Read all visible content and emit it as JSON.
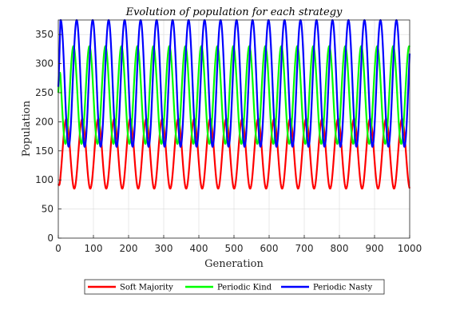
{
  "chart_data": {
    "type": "line",
    "title": "Evolution of population for each strategy",
    "xlabel": "Generation",
    "ylabel": "Population",
    "xlim": [
      0,
      1000
    ],
    "ylim": [
      0,
      375
    ],
    "xticks": [
      "0",
      "100",
      "200",
      "300",
      "400",
      "500",
      "600",
      "700",
      "800",
      "900",
      "1000"
    ],
    "yticks": [
      "0",
      "50",
      "100",
      "150",
      "200",
      "250",
      "300",
      "350"
    ],
    "grid": true,
    "legend_position": "bottom-outside",
    "period": 45.5,
    "series": [
      {
        "name": "Soft Majority",
        "color": "#ff0000",
        "min": 85,
        "max": 205,
        "phase": 0.0,
        "start": 93
      },
      {
        "name": "Periodic Kind",
        "color": "#00ff00",
        "min": 162,
        "max": 330,
        "phase": 0.55,
        "start": 250
      },
      {
        "name": "Periodic Nasty",
        "color": "#0000ff",
        "min": 157,
        "max": 375,
        "phase": 0.35,
        "start": 260
      }
    ]
  }
}
